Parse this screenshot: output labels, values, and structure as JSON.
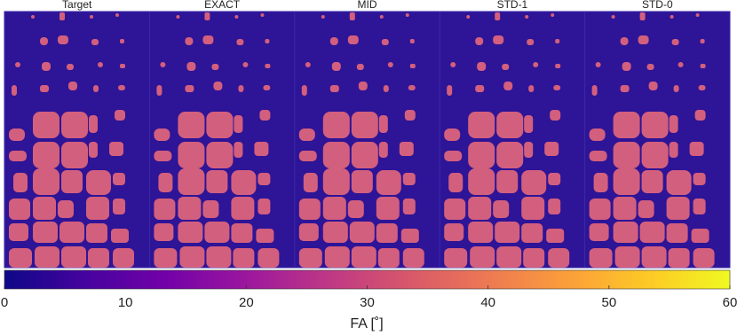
{
  "chart_data": {
    "type": "heatmap",
    "panels": [
      "Target",
      "EXACT",
      "MID",
      "STD-1",
      "STD-0"
    ],
    "colorbar": {
      "label": "FA [˚]",
      "lim": [
        0,
        60
      ],
      "ticks": [
        0,
        10,
        20,
        30,
        40,
        50,
        60
      ],
      "colors": [
        "#0d0887",
        "#46039f",
        "#7201a8",
        "#9c179e",
        "#bd3786",
        "#d8576b",
        "#ed7953",
        "#fb9f3a",
        "#fdca26",
        "#f0f921"
      ]
    }
  }
}
